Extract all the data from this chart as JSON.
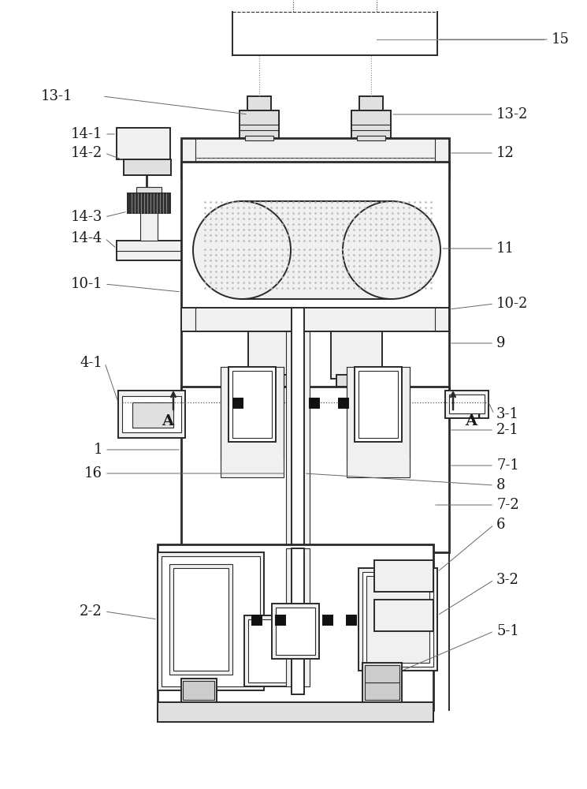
{
  "bg_color": "#ffffff",
  "line_color": "#2a2a2a",
  "lw_main": 1.4,
  "lw_thin": 0.8,
  "lw_thick": 2.0,
  "label_fs": 13,
  "label_color": "#1a1a1a",
  "gray_fill": "#f0f0f0",
  "gray_mid": "#e0e0e0",
  "gray_dark": "#cccccc",
  "black_seal": "#111111",
  "dot_color": "#aaaaaa"
}
